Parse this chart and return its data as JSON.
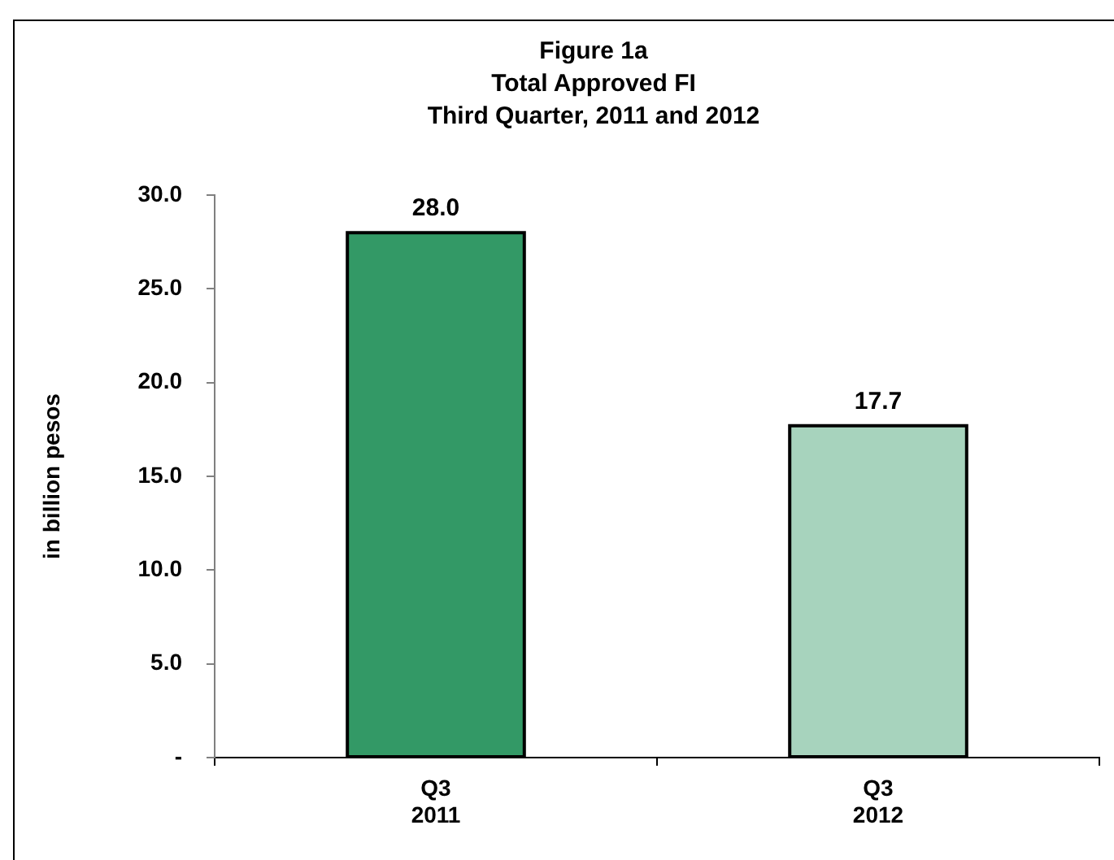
{
  "chart_data": {
    "type": "bar",
    "title": "Figure 1a\nTotal Approved FI\nThird Quarter, 2011 and 2012",
    "ylabel": "in billion pesos",
    "categories": [
      "Q3\n2011",
      "Q3\n2012"
    ],
    "values": [
      28.0,
      17.7
    ],
    "colors": [
      "#339966",
      "#a7d3bd"
    ],
    "value_labels": [
      "28.0",
      "17.7"
    ],
    "ylim": [
      0,
      30
    ],
    "yticks": [
      {
        "value": 0,
        "label": "-"
      },
      {
        "value": 5,
        "label": "5.0"
      },
      {
        "value": 10,
        "label": "10.0"
      },
      {
        "value": 15,
        "label": "15.0"
      },
      {
        "value": 20,
        "label": "20.0"
      },
      {
        "value": 25,
        "label": "25.0"
      },
      {
        "value": 30,
        "label": "30.0"
      }
    ]
  }
}
